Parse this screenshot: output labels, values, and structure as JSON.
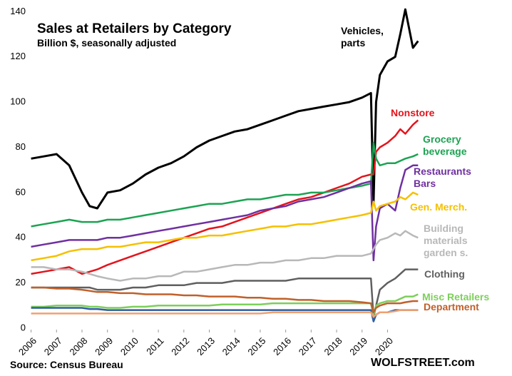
{
  "chart_data": {
    "type": "line",
    "title": "Sales at Retailers by Category",
    "subtitle": "Billion $, seasonally adjusted",
    "source": "Source: Census Bureau",
    "credit": "WOLFSTREET.com",
    "x": [
      2006,
      2006.5,
      2007,
      2007.5,
      2008,
      2008.3,
      2008.6,
      2009,
      2009.5,
      2010,
      2010.5,
      2011,
      2011.5,
      2012,
      2012.5,
      2013,
      2013.5,
      2014,
      2014.5,
      2015,
      2015.5,
      2016,
      2016.5,
      2017,
      2017.5,
      2018,
      2018.5,
      2019,
      2019.35,
      2019.45,
      2019.55,
      2019.7,
      2020,
      2020.3,
      2020.5,
      2020.7,
      2021,
      2021.2
    ],
    "xlim": [
      2005.9,
      2021.5
    ],
    "xticks": [
      2006,
      2007,
      2008,
      2009,
      2010,
      2011,
      2012,
      2013,
      2014,
      2015,
      2016,
      2017,
      2018,
      2019,
      2020
    ],
    "ylim": [
      0,
      142
    ],
    "yticks": [
      0,
      20,
      40,
      60,
      80,
      100,
      120,
      140
    ],
    "grid": false,
    "series": [
      {
        "name": "Vehicles, parts",
        "color": "#000000",
        "values": [
          75,
          76,
          77,
          72,
          60,
          54,
          53,
          60,
          61,
          64,
          68,
          71,
          73,
          76,
          80,
          83,
          85,
          87,
          88,
          90,
          92,
          94,
          96,
          97,
          98,
          99,
          100,
          102,
          104,
          55,
          100,
          112,
          118,
          120,
          130,
          141,
          124,
          127
        ]
      },
      {
        "name": "Nonstore",
        "color": "#e3141c",
        "values": [
          24,
          25,
          26,
          27,
          24,
          25,
          26,
          28,
          30,
          32,
          34,
          36,
          38,
          40,
          42,
          44,
          45,
          47,
          49,
          51,
          53,
          55,
          57,
          58,
          60,
          62,
          64,
          67,
          68,
          68,
          78,
          80,
          82,
          85,
          88,
          86,
          90,
          92
        ]
      },
      {
        "name": "Grocery beverage",
        "color": "#1ca352",
        "values": [
          45,
          46,
          47,
          48,
          47,
          47,
          47,
          48,
          48,
          49,
          50,
          51,
          52,
          53,
          54,
          55,
          55,
          56,
          57,
          57,
          58,
          59,
          59,
          60,
          60,
          61,
          62,
          63,
          64,
          82,
          75,
          72,
          73,
          73,
          74,
          75,
          76,
          77
        ]
      },
      {
        "name": "Restaurants Bars",
        "color": "#7030a0",
        "values": [
          36,
          37,
          38,
          39,
          39,
          39,
          39,
          40,
          40,
          41,
          42,
          43,
          44,
          45,
          46,
          47,
          48,
          49,
          50,
          52,
          53,
          54,
          56,
          57,
          58,
          60,
          62,
          64,
          65,
          30,
          45,
          53,
          55,
          52,
          62,
          70,
          72,
          72
        ]
      },
      {
        "name": "Gen. Merch.",
        "color": "#f5c000",
        "values": [
          30,
          31,
          32,
          34,
          35,
          35,
          35,
          36,
          36,
          37,
          38,
          38,
          39,
          40,
          40,
          41,
          41,
          42,
          43,
          44,
          45,
          45,
          46,
          46,
          47,
          48,
          49,
          50,
          51,
          56,
          52,
          54,
          55,
          56,
          58,
          57,
          60,
          59
        ]
      },
      {
        "name": "Building materials garden s.",
        "color": "#b8b8b8",
        "values": [
          27,
          27,
          26,
          26,
          25,
          24,
          23,
          22,
          21,
          22,
          22,
          23,
          23,
          25,
          25,
          26,
          27,
          28,
          28,
          29,
          29,
          30,
          30,
          31,
          31,
          32,
          32,
          32,
          33,
          35,
          37,
          39,
          40,
          42,
          41,
          43,
          41,
          40
        ]
      },
      {
        "name": "Clothing",
        "color": "#5f5f5f",
        "values": [
          18,
          18,
          18,
          18,
          18,
          18,
          17,
          17,
          17,
          18,
          18,
          19,
          19,
          19,
          20,
          20,
          20,
          21,
          21,
          21,
          21,
          21,
          22,
          22,
          22,
          22,
          22,
          22,
          22,
          5,
          10,
          17,
          20,
          22,
          24,
          26,
          26,
          26
        ]
      },
      {
        "name": "Misc Retailers",
        "color": "#7ccf5a",
        "values": [
          9.5,
          9.5,
          10,
          10,
          10,
          9.5,
          9.5,
          9,
          9,
          9.5,
          9.5,
          10,
          10,
          10,
          10,
          10,
          10.5,
          10.5,
          10.5,
          10.5,
          11,
          11,
          11,
          11,
          11,
          11,
          11,
          11,
          11,
          6,
          10,
          11,
          12,
          12,
          13,
          14,
          14,
          15
        ]
      },
      {
        "name": "Department",
        "color": "#c0602a",
        "values": [
          18,
          18,
          17.5,
          17.5,
          17,
          16.5,
          16,
          16,
          15.5,
          15.5,
          15,
          15,
          15,
          14.5,
          14.5,
          14,
          14,
          14,
          13.5,
          13.5,
          13,
          13,
          12.5,
          12.5,
          12,
          12,
          12,
          11.5,
          11,
          7,
          9,
          10,
          11,
          11,
          11,
          11.5,
          12,
          12
        ]
      },
      {
        "color": "#2f5f9f",
        "values": [
          9,
          9,
          9,
          9,
          9,
          8.5,
          8.5,
          8,
          8,
          8,
          8,
          8,
          8,
          8,
          8,
          8,
          8,
          8,
          8,
          8,
          8,
          8,
          8,
          8,
          8,
          8,
          8,
          8,
          8,
          3,
          6,
          7,
          7,
          8,
          8,
          8,
          8,
          8
        ]
      },
      {
        "color": "#f0a070",
        "values": [
          6.5,
          6.5,
          6.5,
          6.5,
          6.5,
          6.5,
          6.5,
          6.5,
          6.5,
          6.5,
          6.5,
          6.5,
          6.5,
          6.5,
          6.5,
          6.5,
          6.5,
          6.5,
          6.5,
          6.5,
          7,
          7,
          7,
          7,
          7,
          7,
          7,
          7,
          7,
          5,
          6,
          7,
          7,
          7.5,
          8,
          8,
          8,
          8
        ]
      }
    ]
  }
}
